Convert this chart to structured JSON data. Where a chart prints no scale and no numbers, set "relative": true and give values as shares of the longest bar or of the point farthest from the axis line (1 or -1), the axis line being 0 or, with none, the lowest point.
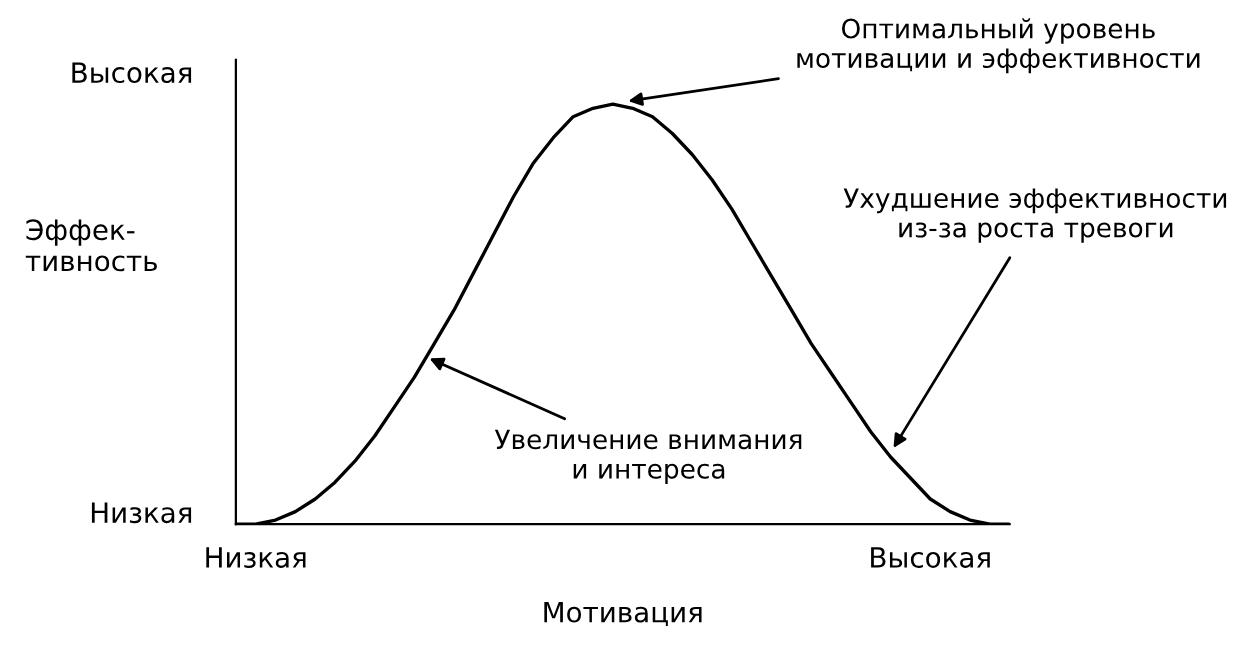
{
  "chart_data": {
    "type": "line",
    "relative": true,
    "xlabel": "Мотивация",
    "ylabel": "Эффек-\nтивность",
    "color": "#000000",
    "marker": "none",
    "line_style": "solid",
    "grid": false,
    "legend": false,
    "categories": [
      null,
      "Низкая",
      null,
      null,
      null,
      null,
      null,
      null,
      null,
      null,
      null,
      null,
      null,
      null,
      null,
      null,
      null,
      null,
      null,
      null,
      null,
      null,
      null,
      null,
      null,
      null,
      null,
      null,
      null,
      null,
      null,
      null,
      null,
      null,
      null,
      "Высокая",
      null,
      null,
      null,
      null
    ],
    "values": [
      0,
      0,
      0.01,
      0.03,
      0.06,
      0.1,
      0.15,
      0.21,
      0.28,
      0.35,
      0.43,
      0.51,
      0.6,
      0.69,
      0.78,
      0.86,
      0.92,
      0.97,
      0.99,
      1.0,
      0.99,
      0.97,
      0.93,
      0.88,
      0.82,
      0.75,
      0.67,
      0.59,
      0.51,
      0.43,
      0.36,
      0.29,
      0.22,
      0.16,
      0.11,
      0.06,
      0.03,
      0.01,
      0,
      0
    ],
    "annotations": [
      "Оптимальный уровень\nмотивации и эффективности",
      "Ухудшение эффективности\nиз-за роста тревоги",
      "Увеличение внимания\nи интереса",
      "Высокая",
      "Низкая"
    ]
  }
}
